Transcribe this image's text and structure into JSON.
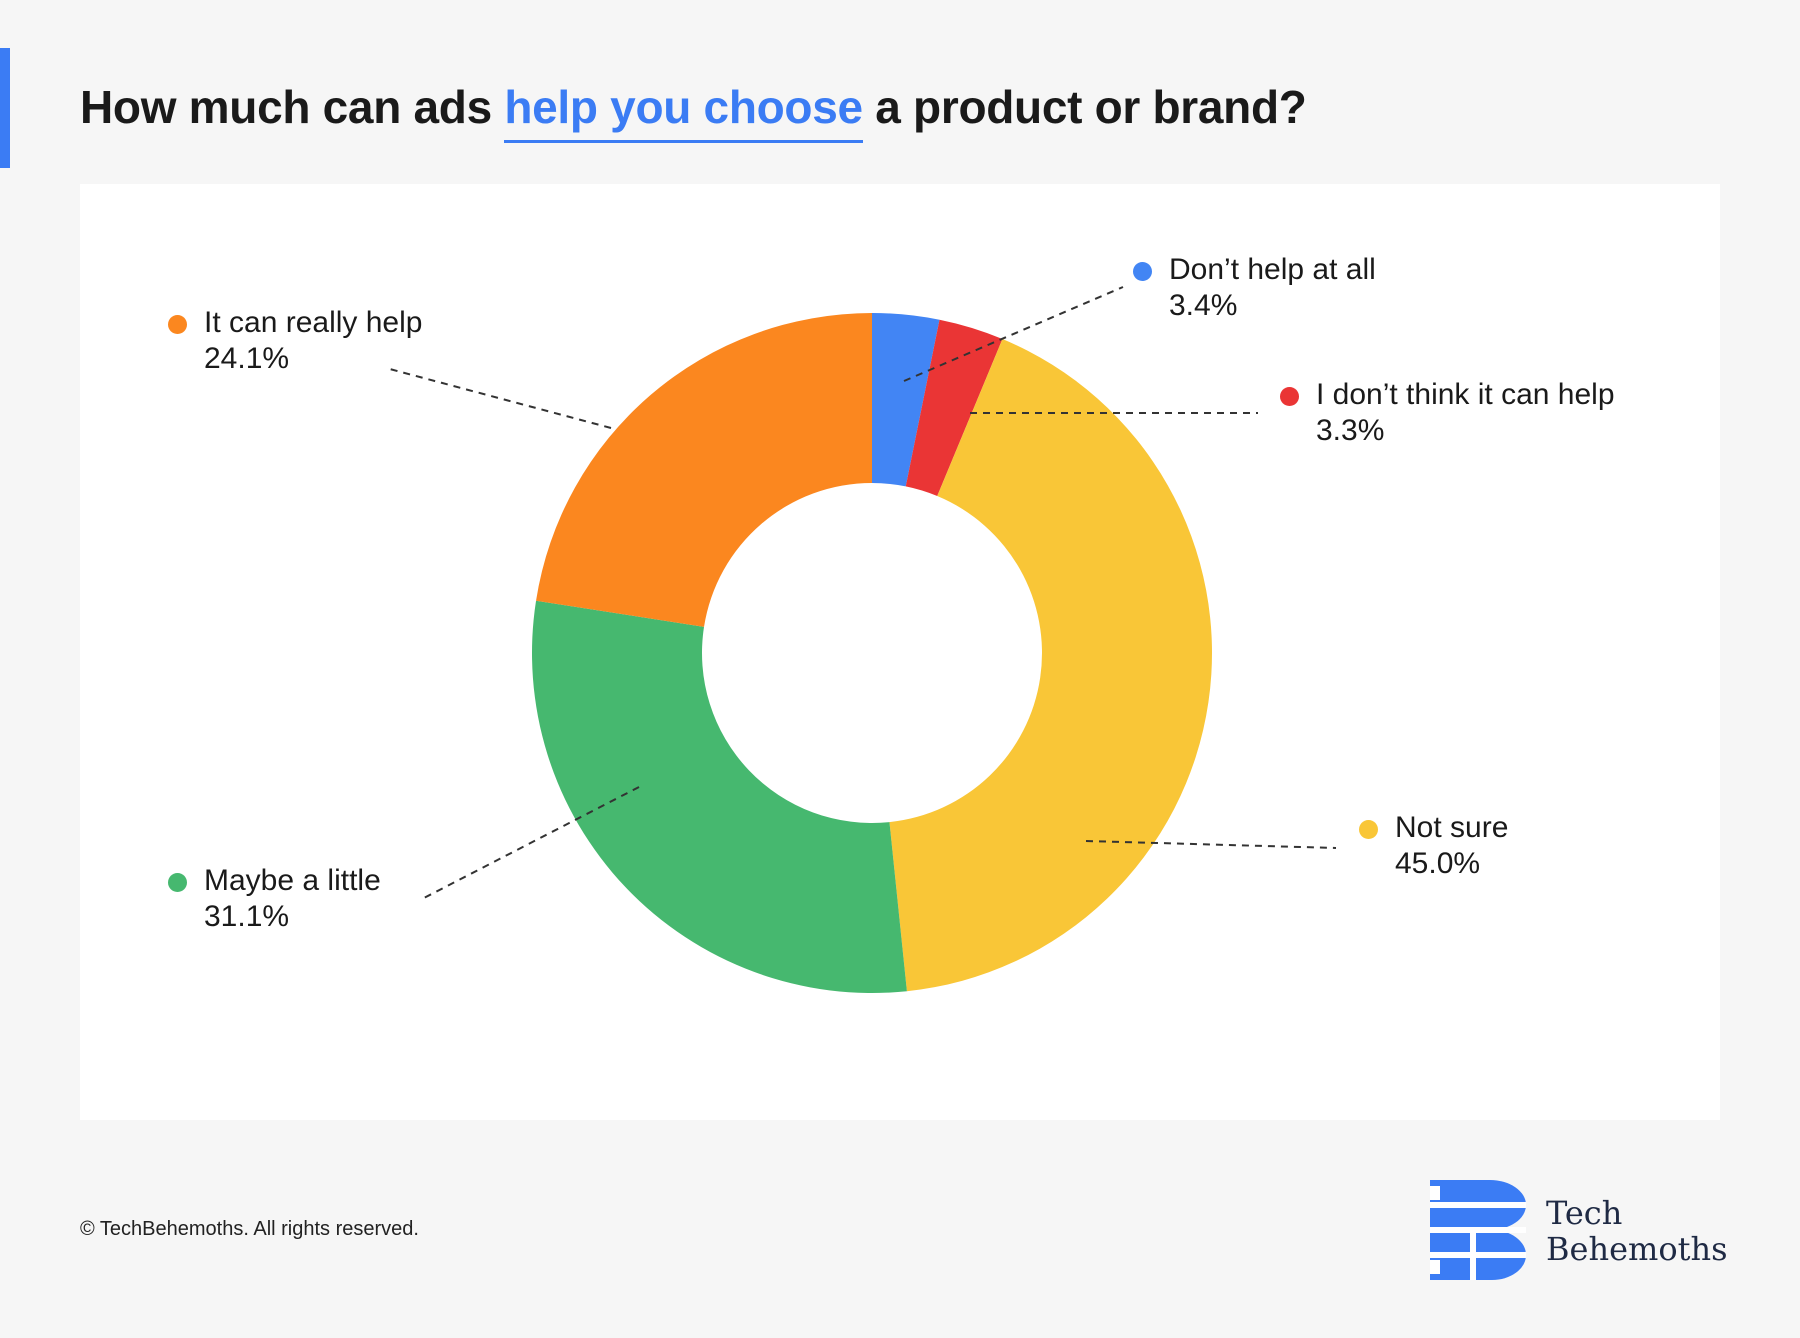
{
  "title": {
    "before": "How much can ads ",
    "highlight": "help you choose",
    "after": " a product or brand?"
  },
  "colors": {
    "accent": "#3b7cf4",
    "dont_help_at_all": "#4285f4",
    "dont_think_help": "#ea3535",
    "not_sure": "#f9c637",
    "maybe_a_little": "#46b86f",
    "really_help": "#fb871f"
  },
  "chart_data": {
    "type": "pie",
    "donut": true,
    "series": [
      {
        "name": "Don’t help at all",
        "label": "3.4%",
        "value": 3.4,
        "color": "#4285f4"
      },
      {
        "name": "I don’t think it can help",
        "label": "3.3%",
        "value": 3.3,
        "color": "#ea3535"
      },
      {
        "name": "Not sure",
        "label": "45.0%",
        "value": 45.0,
        "color": "#f9c637"
      },
      {
        "name": "Maybe a little",
        "label": "31.1%",
        "value": 31.1,
        "color": "#46b86f"
      },
      {
        "name": "It can really help",
        "label": "24.1%",
        "value": 24.1,
        "color": "#fb871f"
      }
    ]
  },
  "footer": "© TechBehemoths. All rights reserved.",
  "logo": {
    "line1": "Tech",
    "line2": "Behemoths"
  }
}
